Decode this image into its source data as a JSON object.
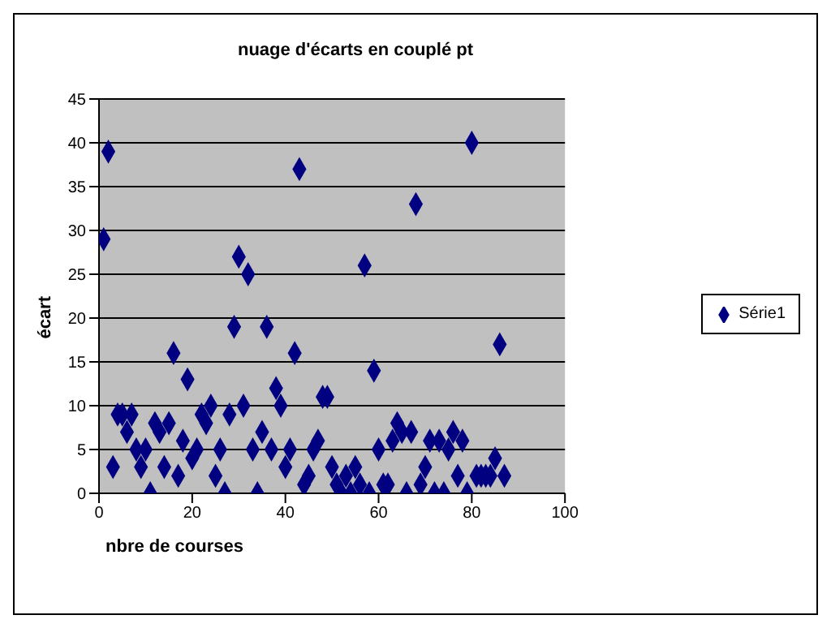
{
  "chart_data": {
    "type": "scatter",
    "title": "nuage d'écarts en couplé pt",
    "xlabel": "nbre de courses",
    "ylabel": "écart",
    "xlim": [
      0,
      100
    ],
    "xticks": [
      0,
      20,
      40,
      60,
      80,
      100
    ],
    "ylim": [
      0,
      45
    ],
    "yticks": [
      0,
      5,
      10,
      15,
      20,
      25,
      30,
      35,
      40,
      45
    ],
    "grid": "y",
    "legend": "right",
    "marker": "diamond",
    "series": [
      {
        "name": "Série1",
        "color": "#000080",
        "x": [
          1,
          2,
          3,
          4,
          5,
          6,
          7,
          8,
          9,
          10,
          11,
          12,
          13,
          14,
          15,
          16,
          17,
          18,
          19,
          20,
          21,
          22,
          23,
          24,
          25,
          26,
          27,
          28,
          29,
          30,
          31,
          32,
          33,
          34,
          35,
          36,
          37,
          38,
          39,
          40,
          41,
          42,
          43,
          44,
          45,
          46,
          47,
          48,
          49,
          50,
          51,
          52,
          53,
          54,
          55,
          56,
          57,
          58,
          59,
          60,
          61,
          62,
          63,
          64,
          65,
          66,
          67,
          68,
          69,
          70,
          71,
          72,
          73,
          74,
          75,
          76,
          77,
          78,
          79,
          80,
          81,
          82,
          83,
          84,
          85,
          86,
          87
        ],
        "values": [
          29,
          39,
          3,
          9,
          9,
          7,
          9,
          5,
          3,
          5,
          0,
          8,
          7,
          3,
          8,
          16,
          2,
          6,
          13,
          4,
          5,
          9,
          8,
          10,
          2,
          5,
          0,
          9,
          19,
          27,
          10,
          25,
          5,
          0,
          7,
          19,
          5,
          12,
          10,
          3,
          5,
          16,
          37,
          1,
          2,
          5,
          6,
          11,
          11,
          3,
          1,
          0,
          2,
          0,
          3,
          1,
          26,
          0,
          14,
          5,
          1,
          1,
          6,
          8,
          7,
          0,
          7,
          33,
          1,
          3,
          6,
          0,
          6,
          0,
          5,
          7,
          2,
          6,
          0,
          40,
          2,
          2,
          2,
          2,
          4,
          17,
          2
        ]
      }
    ]
  }
}
